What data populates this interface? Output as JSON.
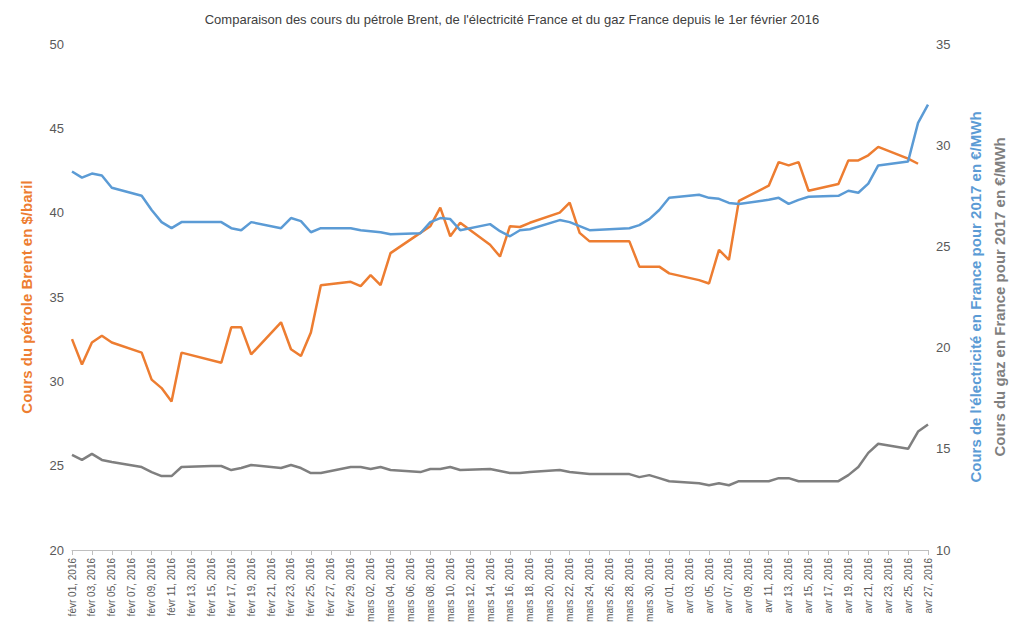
{
  "chart_data": {
    "type": "line",
    "title": "Comparaison des cours du pétrole Brent, de l'électricité France et du gaz France depuis le 1er février 2016",
    "categories": [
      "févr 01, 2016",
      null,
      "févr 03, 2016",
      null,
      "févr 05, 2016",
      null,
      "févr 07, 2016",
      null,
      "févr 09, 2016",
      null,
      "févr 11, 2016",
      null,
      "févr 13, 2016",
      null,
      "févr 15, 2016",
      null,
      "févr 17, 2016",
      null,
      "févr 19, 2016",
      null,
      "févr 21, 2016",
      null,
      "févr 23, 2016",
      null,
      "févr 25, 2016",
      null,
      "févr 27, 2016",
      null,
      "févr 29, 2016",
      null,
      "mars 02, 2016",
      null,
      "mars 04, 2016",
      null,
      "mars 06, 2016",
      null,
      "mars 08, 2016",
      null,
      "mars 10, 2016",
      null,
      "mars 12, 2016",
      null,
      "mars 14, 2016",
      null,
      "mars 16, 2016",
      null,
      "mars 18, 2016",
      null,
      "mars 20, 2016",
      null,
      "mars 22, 2016",
      null,
      "mars 24, 2016",
      null,
      "mars 26, 2016",
      null,
      "mars 28, 2016",
      null,
      "mars 30, 2016",
      null,
      "avr 01, 2016",
      null,
      "avr 03, 2016",
      null,
      "avr 05, 2016",
      null,
      "avr 07, 2016",
      null,
      "avr 09, 2016",
      null,
      "avr 11, 2016",
      null,
      "avr 13, 2016",
      null,
      "avr 15, 2016",
      null,
      "avr 17, 2016",
      null,
      "avr 19, 2016",
      null,
      "avr 21, 2016",
      null,
      "avr 23, 2016",
      null,
      "avr 25, 2016",
      null,
      "avr 27, 2016"
    ],
    "series": [
      {
        "color": "#ED7D31",
        "values": [
          32.5,
          31.0,
          32.3,
          32.7,
          32.3,
          null,
          null,
          31.7,
          30.1,
          29.6,
          28.8,
          31.7,
          null,
          null,
          null,
          31.1,
          33.2,
          33.2,
          31.6,
          null,
          null,
          33.5,
          31.9,
          31.5,
          32.9,
          35.7,
          null,
          null,
          35.9,
          35.65,
          36.3,
          35.7,
          37.6,
          null,
          null,
          38.8,
          39.2,
          40.3,
          38.6,
          39.4,
          null,
          null,
          38.1,
          37.4,
          39.2,
          39.15,
          39.4,
          null,
          null,
          40.0,
          40.6,
          38.8,
          38.3,
          null,
          null,
          null,
          38.3,
          36.8,
          36.8,
          36.8,
          36.4,
          null,
          null,
          36.0,
          35.8,
          37.8,
          37.2,
          40.7,
          null,
          null,
          41.6,
          43.0,
          42.8,
          43.0,
          41.3,
          null,
          null,
          41.7,
          43.1,
          43.1,
          43.4,
          43.9,
          null,
          null,
          43.2,
          42.9,
          null
        ]
      },
      {
        "color": "#5B9BD5",
        "axis": "y2",
        "values": [
          28.7,
          28.4,
          28.6,
          28.5,
          27.9,
          null,
          null,
          27.5,
          26.8,
          26.2,
          25.9,
          26.2,
          null,
          null,
          26.2,
          26.2,
          25.9,
          25.8,
          26.2,
          null,
          null,
          25.9,
          26.4,
          26.25,
          25.7,
          25.9,
          null,
          null,
          25.9,
          25.8,
          25.75,
          25.7,
          25.6,
          null,
          null,
          25.65,
          26.2,
          26.4,
          26.35,
          25.8,
          null,
          null,
          26.1,
          25.75,
          25.5,
          25.8,
          25.85,
          null,
          null,
          26.3,
          26.2,
          26.0,
          25.8,
          null,
          null,
          null,
          25.9,
          26.05,
          26.35,
          26.8,
          27.4,
          null,
          null,
          27.55,
          27.4,
          27.35,
          27.15,
          27.1,
          null,
          null,
          27.3,
          27.4,
          27.1,
          27.3,
          27.45,
          null,
          null,
          27.5,
          27.75,
          27.65,
          28.1,
          29.0,
          null,
          null,
          29.2,
          31.1,
          32.0
        ]
      },
      {
        "color": "#7F7F7F",
        "axis": "y2",
        "values": [
          14.7,
          14.45,
          14.75,
          14.45,
          14.35,
          null,
          null,
          14.1,
          13.85,
          13.65,
          13.65,
          14.1,
          null,
          null,
          14.15,
          14.15,
          13.95,
          14.05,
          14.2,
          null,
          null,
          14.05,
          14.2,
          14.05,
          13.8,
          13.8,
          null,
          null,
          14.1,
          14.1,
          14.0,
          14.1,
          13.95,
          null,
          null,
          13.85,
          14.0,
          14.0,
          14.1,
          13.95,
          null,
          null,
          14.0,
          13.9,
          13.8,
          13.8,
          13.85,
          null,
          null,
          13.95,
          13.85,
          13.8,
          13.75,
          null,
          null,
          null,
          13.75,
          13.6,
          13.7,
          13.55,
          13.4,
          null,
          null,
          13.3,
          13.2,
          13.3,
          13.2,
          13.4,
          null,
          null,
          13.4,
          13.55,
          13.55,
          13.4,
          13.4,
          null,
          null,
          13.4,
          13.7,
          14.1,
          14.8,
          15.25,
          null,
          null,
          15.0,
          15.85,
          16.2
        ]
      }
    ],
    "ylabel": "Cours du pétrole Brent en $/baril",
    "y2label": [
      "Cours de l'électricité en France pour 2017 en €/MWh",
      "Cours du gaz en France pour 2017 en €/MWh"
    ],
    "ylim": [
      20,
      50
    ],
    "yticks": [
      20,
      25,
      30,
      35,
      40,
      45,
      50
    ],
    "y2lim": [
      10,
      35
    ],
    "y2ticks": [
      10,
      15,
      20,
      25,
      30,
      35
    ],
    "grid": false,
    "marker": "none"
  }
}
